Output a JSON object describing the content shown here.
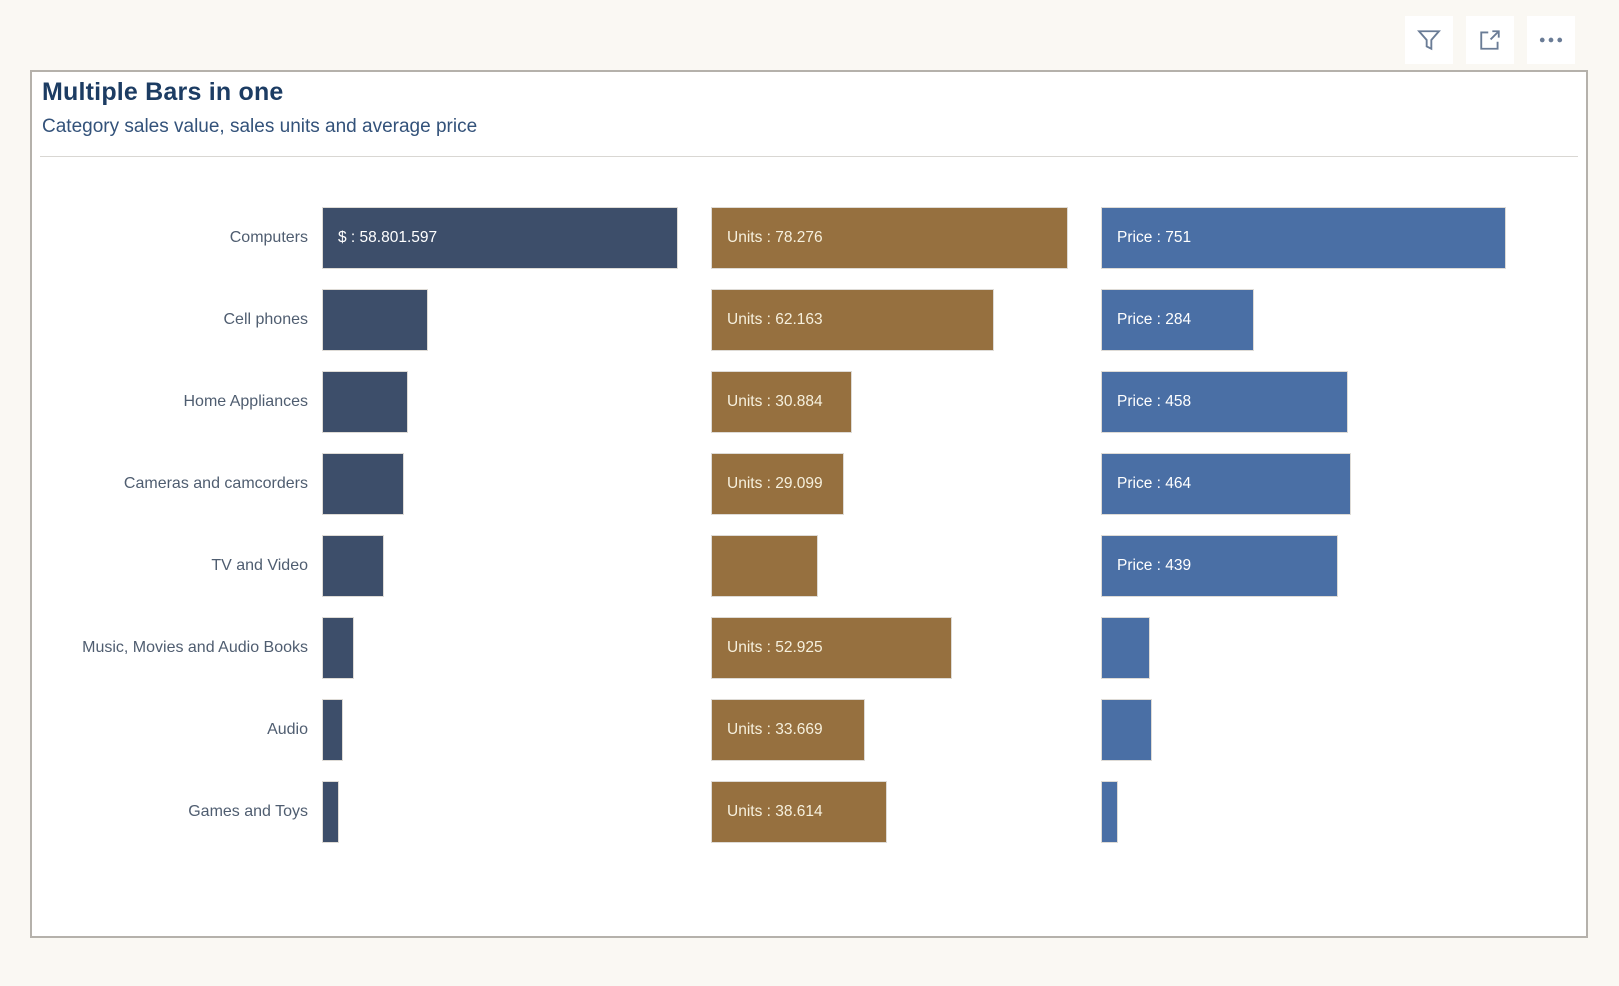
{
  "visual_header": {
    "filter_tooltip": "Filters",
    "focus_tooltip": "Focus mode",
    "more_tooltip": "More options",
    "more_glyph": "• • •",
    "icon_color": "#6a7c96"
  },
  "card": {
    "title": "Multiple Bars in one",
    "subtitle": "Category sales value, sales units and average price"
  },
  "colors": {
    "sales_bar": "#3d4e6a",
    "units_bar": "#96703f",
    "price_bar": "#4a6fa5",
    "canvas_background": "#faf8f3",
    "card_background": "#ffffff",
    "title_text": "#1c3c63",
    "category_text": "#4f5d70"
  },
  "chart_data": {
    "type": "bar",
    "orientation": "horizontal",
    "title": "Multiple Bars in one",
    "subtitle": "Category sales value, sales units and average price",
    "legend": "none",
    "grid": false,
    "categories": [
      "Computers",
      "Cell phones",
      "Home Appliances",
      "Cameras and camcorders",
      "TV and Video",
      "Music, Movies and Audio Books",
      "Audio",
      "Games and Toys"
    ],
    "series": [
      {
        "name": "Sales value ($)",
        "color": "#3d4e6a",
        "bars": [
          {
            "label": "$ : 58.801.597",
            "value": 58801597,
            "pct": 100
          },
          {
            "label": "",
            "pct": 29.8
          },
          {
            "label": "",
            "pct": 24.2
          },
          {
            "label": "",
            "pct": 23.0
          },
          {
            "label": "",
            "pct": 17.4
          },
          {
            "label": "",
            "pct": 9.0
          },
          {
            "label": "",
            "pct": 5.9
          },
          {
            "label": "",
            "pct": 1.4
          }
        ]
      },
      {
        "name": "Sales units",
        "color": "#96703f",
        "bars": [
          {
            "label": "Units : 78.276",
            "value": 78276,
            "pct": 100
          },
          {
            "label": "Units : 62.163",
            "value": 62163,
            "pct": 79.4
          },
          {
            "label": "Units : 30.884",
            "value": 30884,
            "pct": 39.5
          },
          {
            "label": "Units : 29.099",
            "value": 29099,
            "pct": 37.2
          },
          {
            "label": "",
            "pct": 30.0
          },
          {
            "label": "Units : 52.925",
            "value": 52925,
            "pct": 67.6
          },
          {
            "label": "Units : 33.669",
            "value": 33669,
            "pct": 43.0
          },
          {
            "label": "Units : 38.614",
            "value": 38614,
            "pct": 49.3
          }
        ]
      },
      {
        "name": "Average price",
        "color": "#4a6fa5",
        "bars": [
          {
            "label": "Price : 751",
            "value": 751,
            "pct": 100
          },
          {
            "label": "Price : 284",
            "value": 284,
            "pct": 37.8
          },
          {
            "label": "Price : 458",
            "value": 458,
            "pct": 61.0
          },
          {
            "label": "Price : 464",
            "value": 464,
            "pct": 61.8
          },
          {
            "label": "Price : 439",
            "value": 439,
            "pct": 58.5
          },
          {
            "label": "",
            "pct": 12.1
          },
          {
            "label": "",
            "pct": 12.6
          },
          {
            "label": "",
            "pct": 2.7
          }
        ]
      }
    ]
  }
}
